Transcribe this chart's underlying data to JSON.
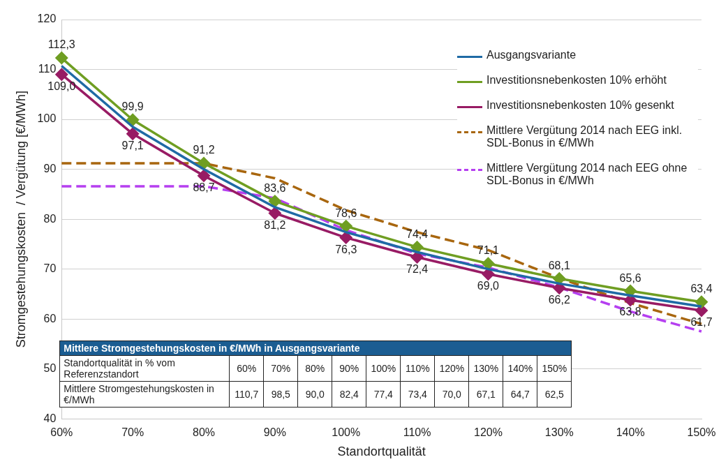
{
  "chart_data": {
    "type": "line",
    "xlabel": "Standortqualität",
    "ylabel": "Stromgestehungskosten  / Vergütung [€/MWh]",
    "categories": [
      "60%",
      "70%",
      "80%",
      "90%",
      "100%",
      "110%",
      "120%",
      "130%",
      "140%",
      "150%"
    ],
    "ylim": [
      40,
      120
    ],
    "yticks": [
      40,
      50,
      60,
      70,
      80,
      90,
      100,
      110,
      120
    ],
    "grid": "y",
    "legend": "top right",
    "series": [
      {
        "name": "Ausgangsvariante",
        "color": "#1f6aa5",
        "marker": "none",
        "values": [
          110.7,
          98.5,
          90.0,
          82.4,
          77.4,
          73.4,
          70.0,
          67.1,
          64.7,
          62.5
        ]
      },
      {
        "name": "Investitionsnebenkosten 10% erhöht",
        "color": "#6f9e22",
        "marker": "diamond",
        "values": [
          112.3,
          99.9,
          91.2,
          83.6,
          78.6,
          74.4,
          71.1,
          68.1,
          65.6,
          63.4
        ],
        "value_labels": [
          "112,3",
          "99,9",
          "91,2",
          "83,6",
          "78,6",
          "74,4",
          "71,1",
          "68,1",
          "65,6",
          "63,4"
        ]
      },
      {
        "name": "Investitionsnebenkosten 10% gesenkt",
        "color": "#981b64",
        "marker": "diamond",
        "values": [
          109.0,
          97.1,
          88.7,
          81.2,
          76.3,
          72.4,
          69.0,
          66.2,
          63.8,
          61.7
        ],
        "value_labels": [
          "109,0",
          "97,1",
          "88,7",
          "81,2",
          "76,3",
          "72,4",
          "69,0",
          "66,2",
          "63,8",
          "61,7"
        ]
      },
      {
        "name": "Mittlere Vergütung 2014 nach EEG inkl. SDL-Bonus in €/MWh",
        "color": "#a8660e",
        "marker": "none",
        "line_style": "dashed",
        "values": [
          91.2,
          91.2,
          91.2,
          88.2,
          81.8,
          77.4,
          73.8,
          68.2,
          63.2,
          59.0
        ]
      },
      {
        "name": "Mittlere Vergütung 2014 nach EEG ohne SDL-Bonus in €/MWh",
        "color": "#b53ff0",
        "marker": "none",
        "line_style": "dashed",
        "values": [
          86.6,
          86.6,
          86.6,
          84.2,
          77.8,
          73.1,
          70.3,
          66.3,
          61.5,
          57.5
        ]
      }
    ],
    "annotations": [
      "Mittlere Stromgestehungskosten in €/MWh in Ausgangsvariante",
      "Standortqualität in % vom Referenzstandort",
      "Mittlere Stromgestehungskosten in €/MWh",
      "110,7",
      "98,5",
      "90,0",
      "82,4",
      "77,4",
      "73,4",
      "70,0",
      "67,1",
      "64,7",
      "62,5"
    ]
  }
}
